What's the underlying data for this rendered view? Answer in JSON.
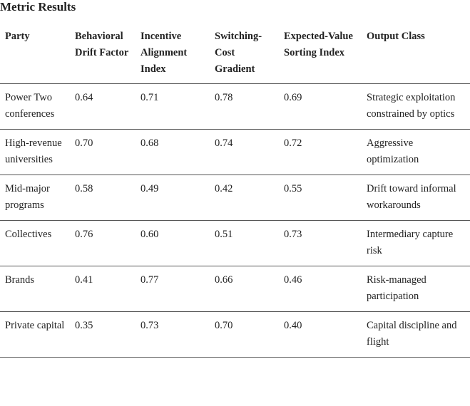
{
  "title": "Metric Results",
  "table": {
    "columns": [
      "Party",
      "Behavioral Drift Factor",
      "Incentive Alignment Index",
      "Switching-Cost Gradient",
      "Expected-Value Sorting Index",
      "Output Class"
    ],
    "rows": [
      [
        "Power Two conferences",
        "0.64",
        "0.71",
        "0.78",
        "0.69",
        "Strategic exploitation constrained by optics"
      ],
      [
        "High-revenue universities",
        "0.70",
        "0.68",
        "0.74",
        "0.72",
        "Aggressive optimization"
      ],
      [
        "Mid-major programs",
        "0.58",
        "0.49",
        "0.42",
        "0.55",
        "Drift toward informal workarounds"
      ],
      [
        "Collectives",
        "0.76",
        "0.60",
        "0.51",
        "0.73",
        "Intermediary capture risk"
      ],
      [
        "Brands",
        "0.41",
        "0.77",
        "0.66",
        "0.46",
        "Risk-managed participation"
      ],
      [
        "Private capital",
        "0.35",
        "0.73",
        "0.70",
        "0.40",
        "Capital discipline and flight"
      ]
    ]
  }
}
